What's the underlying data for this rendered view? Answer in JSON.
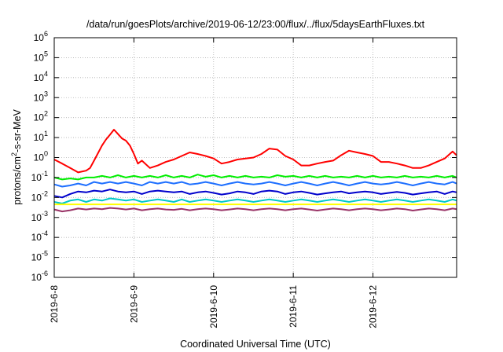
{
  "chart_data": {
    "type": "line",
    "title": "/data/run/goesPlots/archive/2019-06-12/23:00/flux/../flux/5daysEarthFluxes.txt",
    "xlabel": "Coordinated Universal Time (UTC)",
    "ylabel_parts": [
      "protons/cm",
      "2",
      "-s-sr-MeV"
    ],
    "y_scale": "log",
    "ylim": [
      1e-06,
      1000000
    ],
    "y_ticks": [
      {
        "base": "10",
        "exp": "-6"
      },
      {
        "base": "10",
        "exp": "-5"
      },
      {
        "base": "10",
        "exp": "-4"
      },
      {
        "base": "10",
        "exp": "-3"
      },
      {
        "base": "10",
        "exp": "-2"
      },
      {
        "base": "10",
        "exp": "-1"
      },
      {
        "base": "10",
        "exp": "0"
      },
      {
        "base": "10",
        "exp": "1"
      },
      {
        "base": "10",
        "exp": "2"
      },
      {
        "base": "10",
        "exp": "3"
      },
      {
        "base": "10",
        "exp": "4"
      },
      {
        "base": "10",
        "exp": "5"
      },
      {
        "base": "10",
        "exp": "6"
      }
    ],
    "x_tick_labels": [
      "2019-6-8",
      "2019-6-9",
      "2019-6-10",
      "2019-6-11",
      "2019-6-12"
    ],
    "xlim_days": [
      0,
      5.05
    ],
    "grid": true,
    "series": [
      {
        "color": "#ff0000",
        "x": [
          0,
          0.1,
          0.2,
          0.3,
          0.4,
          0.45,
          0.5,
          0.6,
          0.65,
          0.7,
          0.75,
          0.8,
          0.85,
          0.9,
          0.95,
          1.0,
          1.05,
          1.1,
          1.2,
          1.3,
          1.4,
          1.5,
          1.6,
          1.7,
          1.8,
          1.9,
          2.0,
          2.1,
          2.2,
          2.3,
          2.4,
          2.5,
          2.6,
          2.7,
          2.8,
          2.9,
          3.0,
          3.1,
          3.2,
          3.3,
          3.4,
          3.5,
          3.6,
          3.7,
          3.8,
          3.9,
          4.0,
          4.1,
          4.2,
          4.3,
          4.4,
          4.5,
          4.6,
          4.7,
          4.8,
          4.9,
          5.0,
          5.05
        ],
        "values": [
          0.8,
          0.5,
          0.3,
          0.18,
          0.22,
          0.3,
          0.7,
          4,
          8,
          14,
          25,
          15,
          9,
          7,
          4,
          1.5,
          0.5,
          0.7,
          0.3,
          0.4,
          0.6,
          0.8,
          1.2,
          1.8,
          1.5,
          1.2,
          0.9,
          0.5,
          0.6,
          0.8,
          0.9,
          1.0,
          1.5,
          2.8,
          2.5,
          1.2,
          0.8,
          0.4,
          0.4,
          0.5,
          0.6,
          0.7,
          1.3,
          2.2,
          1.8,
          1.5,
          1.2,
          0.6,
          0.6,
          0.5,
          0.4,
          0.3,
          0.3,
          0.4,
          0.6,
          0.9,
          2.0,
          1.3
        ]
      },
      {
        "color": "#00ee00",
        "x": [
          0,
          0.1,
          0.2,
          0.3,
          0.4,
          0.5,
          0.6,
          0.7,
          0.8,
          0.9,
          1.0,
          1.1,
          1.2,
          1.3,
          1.4,
          1.5,
          1.6,
          1.7,
          1.8,
          1.9,
          2.0,
          2.1,
          2.2,
          2.3,
          2.4,
          2.5,
          2.6,
          2.7,
          2.8,
          2.9,
          3.0,
          3.1,
          3.2,
          3.3,
          3.4,
          3.5,
          3.6,
          3.7,
          3.8,
          3.9,
          4.0,
          4.1,
          4.2,
          4.3,
          4.4,
          4.5,
          4.6,
          4.7,
          4.8,
          4.9,
          5.0,
          5.05
        ],
        "values": [
          0.1,
          0.08,
          0.09,
          0.08,
          0.1,
          0.1,
          0.12,
          0.1,
          0.13,
          0.1,
          0.12,
          0.1,
          0.12,
          0.1,
          0.13,
          0.1,
          0.12,
          0.1,
          0.14,
          0.11,
          0.13,
          0.1,
          0.12,
          0.1,
          0.12,
          0.1,
          0.11,
          0.1,
          0.13,
          0.11,
          0.12,
          0.1,
          0.12,
          0.1,
          0.12,
          0.1,
          0.11,
          0.1,
          0.12,
          0.1,
          0.12,
          0.1,
          0.11,
          0.1,
          0.12,
          0.1,
          0.11,
          0.1,
          0.12,
          0.1,
          0.12,
          0.1
        ]
      },
      {
        "color": "#1e6fff",
        "x": [
          0,
          0.1,
          0.2,
          0.3,
          0.4,
          0.5,
          0.6,
          0.7,
          0.8,
          0.9,
          1.0,
          1.1,
          1.2,
          1.3,
          1.4,
          1.5,
          1.6,
          1.7,
          1.8,
          1.9,
          2.0,
          2.1,
          2.2,
          2.3,
          2.4,
          2.5,
          2.6,
          2.7,
          2.8,
          2.9,
          3.0,
          3.1,
          3.2,
          3.3,
          3.4,
          3.5,
          3.6,
          3.7,
          3.8,
          3.9,
          4.0,
          4.1,
          4.2,
          4.3,
          4.4,
          4.5,
          4.6,
          4.7,
          4.8,
          4.9,
          5.0,
          5.05
        ],
        "values": [
          0.045,
          0.035,
          0.04,
          0.05,
          0.04,
          0.06,
          0.05,
          0.06,
          0.05,
          0.06,
          0.05,
          0.04,
          0.06,
          0.05,
          0.06,
          0.05,
          0.06,
          0.045,
          0.05,
          0.06,
          0.05,
          0.04,
          0.05,
          0.06,
          0.05,
          0.045,
          0.05,
          0.06,
          0.05,
          0.04,
          0.05,
          0.06,
          0.05,
          0.04,
          0.05,
          0.06,
          0.05,
          0.04,
          0.05,
          0.06,
          0.05,
          0.045,
          0.05,
          0.06,
          0.05,
          0.04,
          0.05,
          0.06,
          0.05,
          0.045,
          0.06,
          0.05
        ]
      },
      {
        "color": "#0000cc",
        "x": [
          0,
          0.1,
          0.2,
          0.3,
          0.4,
          0.5,
          0.6,
          0.7,
          0.8,
          0.9,
          1.0,
          1.1,
          1.2,
          1.3,
          1.4,
          1.5,
          1.6,
          1.7,
          1.8,
          1.9,
          2.0,
          2.1,
          2.2,
          2.3,
          2.4,
          2.5,
          2.6,
          2.7,
          2.8,
          2.9,
          3.0,
          3.1,
          3.2,
          3.3,
          3.4,
          3.5,
          3.6,
          3.7,
          3.8,
          3.9,
          4.0,
          4.1,
          4.2,
          4.3,
          4.4,
          4.5,
          4.6,
          4.7,
          4.8,
          4.9,
          5.0,
          5.05
        ],
        "values": [
          0.012,
          0.01,
          0.015,
          0.02,
          0.018,
          0.022,
          0.02,
          0.025,
          0.02,
          0.018,
          0.02,
          0.015,
          0.02,
          0.022,
          0.02,
          0.018,
          0.02,
          0.015,
          0.018,
          0.02,
          0.017,
          0.014,
          0.016,
          0.02,
          0.018,
          0.015,
          0.02,
          0.022,
          0.02,
          0.015,
          0.018,
          0.02,
          0.017,
          0.014,
          0.016,
          0.018,
          0.02,
          0.016,
          0.018,
          0.02,
          0.018,
          0.015,
          0.017,
          0.019,
          0.017,
          0.014,
          0.016,
          0.018,
          0.02,
          0.015,
          0.02,
          0.018
        ]
      },
      {
        "color": "#00c8c8",
        "x": [
          0,
          0.1,
          0.2,
          0.3,
          0.4,
          0.5,
          0.6,
          0.7,
          0.8,
          0.9,
          1.0,
          1.1,
          1.2,
          1.3,
          1.4,
          1.5,
          1.6,
          1.7,
          1.8,
          1.9,
          2.0,
          2.1,
          2.2,
          2.3,
          2.4,
          2.5,
          2.6,
          2.7,
          2.8,
          2.9,
          3.0,
          3.1,
          3.2,
          3.3,
          3.4,
          3.5,
          3.6,
          3.7,
          3.8,
          3.9,
          4.0,
          4.1,
          4.2,
          4.3,
          4.4,
          4.5,
          4.6,
          4.7,
          4.8,
          4.9,
          5.0,
          5.05
        ],
        "values": [
          0.006,
          0.005,
          0.007,
          0.008,
          0.006,
          0.008,
          0.007,
          0.009,
          0.008,
          0.007,
          0.008,
          0.006,
          0.007,
          0.008,
          0.007,
          0.006,
          0.008,
          0.006,
          0.007,
          0.008,
          0.007,
          0.006,
          0.007,
          0.008,
          0.007,
          0.006,
          0.007,
          0.008,
          0.007,
          0.006,
          0.007,
          0.008,
          0.007,
          0.006,
          0.007,
          0.008,
          0.007,
          0.006,
          0.007,
          0.008,
          0.007,
          0.006,
          0.007,
          0.008,
          0.007,
          0.006,
          0.007,
          0.008,
          0.007,
          0.006,
          0.008,
          0.007
        ]
      },
      {
        "color": "#ffff00",
        "x": [
          0,
          0.5,
          1.0,
          1.5,
          2.0,
          2.5,
          3.0,
          3.5,
          4.0,
          4.5,
          5.0,
          5.05
        ],
        "values": [
          0.0045,
          0.0045,
          0.0045,
          0.0045,
          0.0045,
          0.0045,
          0.0045,
          0.0045,
          0.0045,
          0.0045,
          0.0045,
          0.0045
        ]
      },
      {
        "color": "#993366",
        "x": [
          0,
          0.1,
          0.2,
          0.3,
          0.4,
          0.5,
          0.6,
          0.7,
          0.8,
          0.9,
          1.0,
          1.1,
          1.2,
          1.3,
          1.4,
          1.5,
          1.6,
          1.7,
          1.8,
          1.9,
          2.0,
          2.1,
          2.2,
          2.3,
          2.4,
          2.5,
          2.6,
          2.7,
          2.8,
          2.9,
          3.0,
          3.1,
          3.2,
          3.3,
          3.4,
          3.5,
          3.6,
          3.7,
          3.8,
          3.9,
          4.0,
          4.1,
          4.2,
          4.3,
          4.4,
          4.5,
          4.6,
          4.7,
          4.8,
          4.9,
          5.0,
          5.05
        ],
        "values": [
          0.0025,
          0.002,
          0.0023,
          0.0028,
          0.0025,
          0.0028,
          0.0026,
          0.003,
          0.0028,
          0.0025,
          0.0028,
          0.0023,
          0.0026,
          0.0028,
          0.0025,
          0.0024,
          0.0027,
          0.0023,
          0.0026,
          0.0028,
          0.0026,
          0.0023,
          0.0025,
          0.0028,
          0.0026,
          0.0023,
          0.0026,
          0.0028,
          0.0026,
          0.0023,
          0.0026,
          0.0028,
          0.0025,
          0.0022,
          0.0025,
          0.0028,
          0.0026,
          0.0023,
          0.0026,
          0.0028,
          0.0026,
          0.0023,
          0.0025,
          0.0028,
          0.0026,
          0.0022,
          0.0025,
          0.0028,
          0.0026,
          0.0023,
          0.0028,
          0.0026
        ]
      }
    ]
  }
}
